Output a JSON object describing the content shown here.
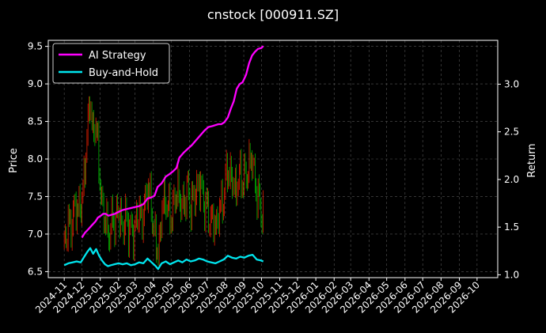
{
  "chart_data": {
    "type": "line",
    "title": "cnstock [000911.SZ]",
    "ylabel_left": "Price",
    "ylabel_right": "Return",
    "left_ylim": [
      6.42,
      9.58
    ],
    "right_ylim": [
      0.97,
      3.46
    ],
    "left_yticks": [
      "6.5",
      "7.0",
      "7.5",
      "8.0",
      "8.5",
      "9.0",
      "9.5"
    ],
    "right_yticks": [
      "1.0",
      "1.5",
      "2.0",
      "2.5",
      "3.0"
    ],
    "x_ticks": [
      "2024-11",
      "2024-12",
      "2025-01",
      "2025-02",
      "2025-03",
      "2025-04",
      "2025-05",
      "2025-06",
      "2025-07",
      "2025-08",
      "2025-09",
      "2025-10",
      "2025-11",
      "2025-12",
      "2026-01",
      "2026-02",
      "2026-03",
      "2026-04",
      "2026-05",
      "2026-06",
      "2026-07",
      "2026-08",
      "2026-09",
      "2026-10"
    ],
    "grid": true,
    "legend_position": "top-left",
    "colors": {
      "background": "#000000",
      "ai_strategy": "#ff00ff",
      "buy_and_hold": "#00e5ee",
      "candle_up": "#ff2200",
      "candle_down": "#00cc00",
      "grid": "#555555"
    },
    "series": [
      {
        "name": "AI Strategy",
        "axis": "right",
        "x": [
          "2024-12-01",
          "2024-12-06",
          "2024-12-12",
          "2024-12-18",
          "2024-12-24",
          "2024-12-28",
          "2025-01-02",
          "2025-01-06",
          "2025-01-10",
          "2025-01-15",
          "2025-01-20",
          "2025-01-26",
          "2025-02-01",
          "2025-02-08",
          "2025-02-15",
          "2025-02-22",
          "2025-03-01",
          "2025-03-08",
          "2025-03-15",
          "2025-03-22",
          "2025-03-28",
          "2025-04-03",
          "2025-04-08",
          "2025-04-15",
          "2025-04-22",
          "2025-04-29",
          "2025-05-05",
          "2025-05-10",
          "2025-05-15",
          "2025-05-22",
          "2025-05-29",
          "2025-06-05",
          "2025-06-12",
          "2025-06-19",
          "2025-06-26",
          "2025-07-03",
          "2025-07-10",
          "2025-07-15",
          "2025-07-20",
          "2025-07-25",
          "2025-07-30",
          "2025-08-05",
          "2025-08-10",
          "2025-08-15",
          "2025-08-20",
          "2025-08-25",
          "2025-08-30",
          "2025-09-05",
          "2025-09-10",
          "2025-09-15",
          "2025-09-20",
          "2025-09-25",
          "2025-10-01",
          "2025-10-04"
        ],
        "values": [
          1.39,
          1.44,
          1.48,
          1.52,
          1.56,
          1.6,
          1.62,
          1.64,
          1.64,
          1.62,
          1.63,
          1.64,
          1.66,
          1.68,
          1.69,
          1.7,
          1.71,
          1.72,
          1.74,
          1.8,
          1.81,
          1.83,
          1.92,
          1.96,
          2.03,
          2.06,
          2.09,
          2.12,
          2.23,
          2.28,
          2.32,
          2.36,
          2.41,
          2.46,
          2.51,
          2.55,
          2.56,
          2.57,
          2.58,
          2.58,
          2.6,
          2.65,
          2.74,
          2.82,
          2.95,
          3.0,
          3.02,
          3.1,
          3.22,
          3.3,
          3.34,
          3.37,
          3.38,
          3.4
        ]
      },
      {
        "name": "Buy-and-Hold",
        "axis": "right",
        "x": [
          "2024-11-01",
          "2024-11-08",
          "2024-11-15",
          "2024-11-22",
          "2024-11-29",
          "2024-12-05",
          "2024-12-10",
          "2024-12-15",
          "2024-12-20",
          "2024-12-25",
          "2024-12-30",
          "2025-01-04",
          "2025-01-09",
          "2025-01-14",
          "2025-01-19",
          "2025-01-25",
          "2025-02-01",
          "2025-02-08",
          "2025-02-15",
          "2025-02-22",
          "2025-03-01",
          "2025-03-08",
          "2025-03-15",
          "2025-03-22",
          "2025-03-29",
          "2025-04-05",
          "2025-04-09",
          "2025-04-15",
          "2025-04-22",
          "2025-04-29",
          "2025-05-06",
          "2025-05-13",
          "2025-05-20",
          "2025-05-27",
          "2025-06-03",
          "2025-06-10",
          "2025-06-17",
          "2025-06-24",
          "2025-07-01",
          "2025-07-08",
          "2025-07-15",
          "2025-07-22",
          "2025-07-29",
          "2025-08-05",
          "2025-08-12",
          "2025-08-19",
          "2025-08-26",
          "2025-09-02",
          "2025-09-09",
          "2025-09-16",
          "2025-09-23",
          "2025-09-30",
          "2025-10-04"
        ],
        "values": [
          1.1,
          1.12,
          1.13,
          1.14,
          1.13,
          1.19,
          1.24,
          1.28,
          1.22,
          1.27,
          1.2,
          1.15,
          1.11,
          1.09,
          1.1,
          1.11,
          1.12,
          1.11,
          1.12,
          1.1,
          1.11,
          1.13,
          1.12,
          1.17,
          1.13,
          1.09,
          1.06,
          1.12,
          1.14,
          1.11,
          1.13,
          1.15,
          1.13,
          1.16,
          1.14,
          1.15,
          1.17,
          1.16,
          1.14,
          1.13,
          1.12,
          1.14,
          1.16,
          1.2,
          1.18,
          1.17,
          1.19,
          1.18,
          1.2,
          1.21,
          1.16,
          1.15,
          1.14
        ]
      }
    ],
    "price_candles": {
      "axis": "left",
      "x": [
        "2024-11-01",
        "2024-11-08",
        "2024-11-15",
        "2024-11-22",
        "2024-11-29",
        "2024-12-05",
        "2024-12-10",
        "2024-12-15",
        "2024-12-20",
        "2024-12-25",
        "2024-12-30",
        "2025-01-04",
        "2025-01-09",
        "2025-01-14",
        "2025-01-19",
        "2025-01-25",
        "2025-02-01",
        "2025-02-08",
        "2025-02-15",
        "2025-02-22",
        "2025-03-01",
        "2025-03-08",
        "2025-03-15",
        "2025-03-22",
        "2025-03-29",
        "2025-04-05",
        "2025-04-09",
        "2025-04-15",
        "2025-04-22",
        "2025-04-29",
        "2025-05-06",
        "2025-05-13",
        "2025-05-20",
        "2025-05-27",
        "2025-06-03",
        "2025-06-10",
        "2025-06-17",
        "2025-06-24",
        "2025-07-01",
        "2025-07-08",
        "2025-07-15",
        "2025-07-22",
        "2025-07-29",
        "2025-08-05",
        "2025-08-12",
        "2025-08-19",
        "2025-08-26",
        "2025-09-02",
        "2025-09-09",
        "2025-09-16",
        "2025-09-23",
        "2025-09-30",
        "2025-10-04"
      ],
      "values": [
        6.9,
        7.1,
        7.2,
        7.4,
        7.3,
        7.8,
        8.3,
        8.9,
        8.2,
        8.6,
        7.8,
        7.4,
        7.2,
        7.0,
        7.1,
        7.2,
        7.3,
        7.1,
        7.2,
        7.0,
        7.1,
        7.3,
        7.2,
        7.7,
        7.3,
        6.9,
        6.7,
        7.3,
        7.5,
        7.2,
        7.4,
        7.6,
        7.3,
        7.6,
        7.4,
        7.5,
        7.7,
        7.5,
        7.3,
        7.2,
        7.1,
        7.3,
        7.5,
        7.9,
        7.7,
        7.6,
        7.8,
        7.7,
        7.9,
        8.0,
        7.5,
        7.4,
        7.2
      ]
    }
  }
}
